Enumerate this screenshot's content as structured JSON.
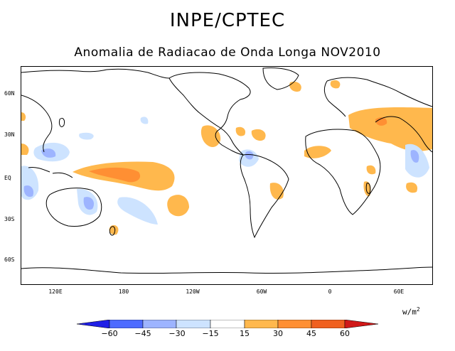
{
  "header": {
    "title": "INPE/CPTEC",
    "subtitle": "Anomalia de Radiacao de Onda Longa NOV2010"
  },
  "axes": {
    "lat_labels": [
      "60N",
      "30N",
      "EQ",
      "30S",
      "60S"
    ],
    "lon_labels": [
      "120E",
      "180",
      "120W",
      "60W",
      "0",
      "60E"
    ]
  },
  "legend": {
    "unit": "w/m",
    "unit_exp": "2",
    "labels": [
      "−60",
      "−45",
      "−30",
      "−15",
      "15",
      "30",
      "45",
      "60"
    ],
    "colors": [
      "#1f1fe6",
      "#4d6bff",
      "#9db4ff",
      "#cde3ff",
      "#ffffff",
      "#ffb84d",
      "#ff8f33",
      "#f0601f",
      "#d01818"
    ]
  }
}
